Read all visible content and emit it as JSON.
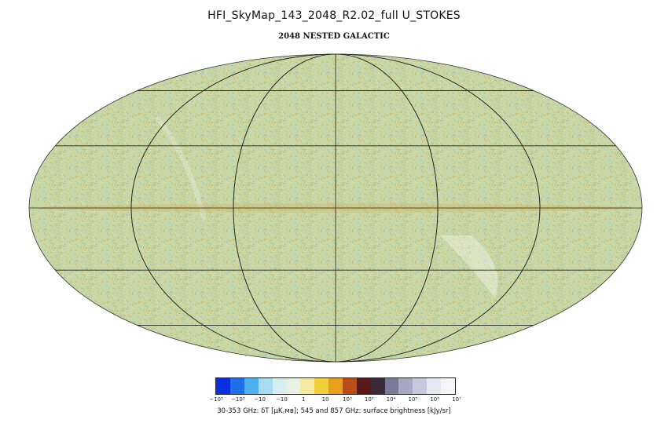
{
  "title": "HFI_SkyMap_143_2048_R2.02_full   U_STOKES",
  "subtitle": "2048 NESTED GALACTIC",
  "map": {
    "projection": "mollweide",
    "base_color": "#c8d8a8",
    "noise_colors": [
      "#d9b54a",
      "#7fc5d6",
      "#e8e2b0",
      "#a9cf9e",
      "#c9a64a"
    ],
    "grid_color": "#222222"
  },
  "colorbar": {
    "colors": [
      "#0a2fe0",
      "#1f6fe8",
      "#4fb0ee",
      "#a8dcf0",
      "#d8eef0",
      "#e8f2e4",
      "#f4e9a0",
      "#f1cf3a",
      "#e9a11c",
      "#b84d18",
      "#5a1a1a",
      "#3a2a3a",
      "#7a7a9a",
      "#a8a8c0",
      "#c8c8dc",
      "#e8e8f2",
      "#f6f6fa"
    ],
    "ticks": [
      "−10⁵",
      "−10³",
      "−10",
      "−10",
      "1",
      "10",
      "10³",
      "10³",
      "10⁴",
      "10⁵",
      "10⁶",
      "10⁷"
    ],
    "label": "30-353 GHz: δT [μK꜀ᴍʙ]; 545 and 857 GHz: surface brightness [kJy/sr]"
  }
}
